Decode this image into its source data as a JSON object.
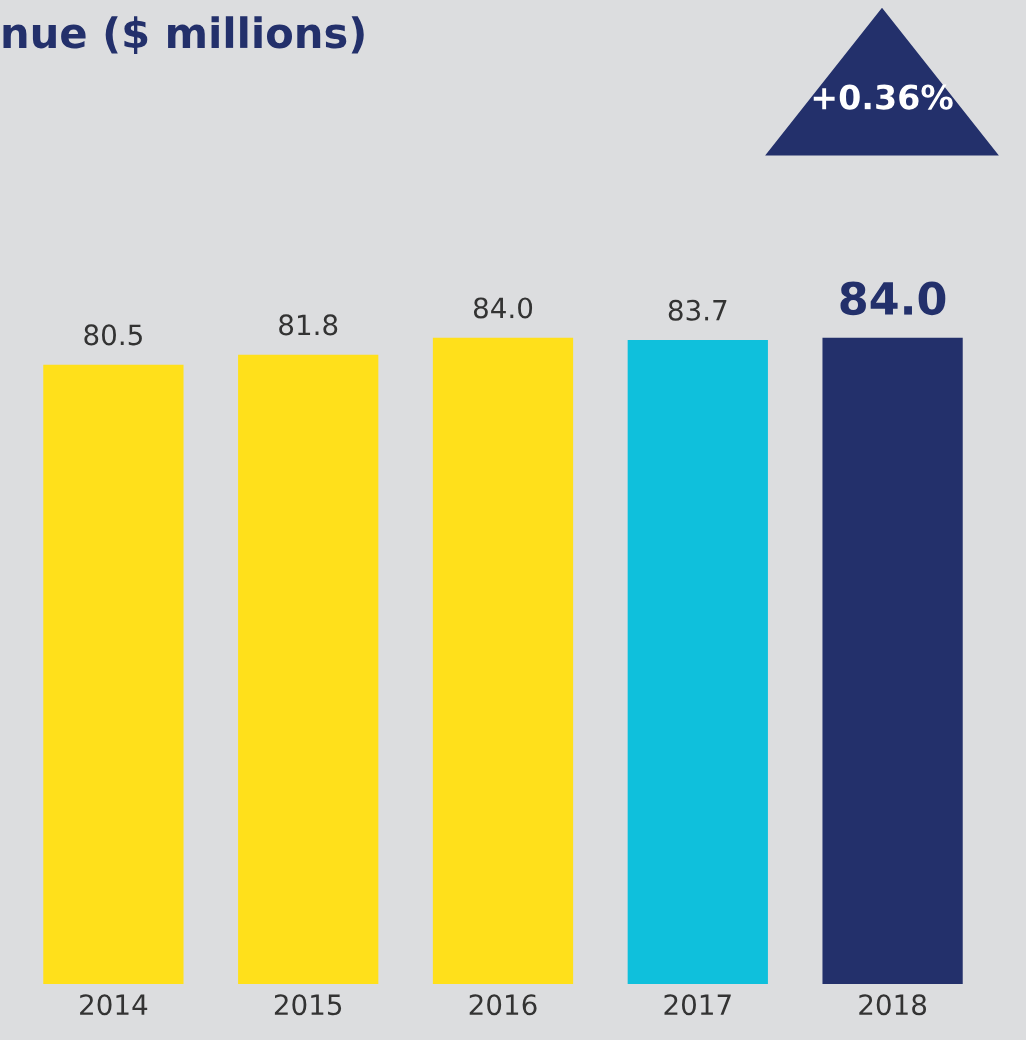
{
  "chart_data": {
    "type": "bar",
    "title": "nue ($ millions)",
    "categories": [
      "2014",
      "2015",
      "2016",
      "2017",
      "2018"
    ],
    "values": [
      80.5,
      81.8,
      84.0,
      83.7,
      84.0
    ],
    "colors": [
      "#ffe01b",
      "#ffe01b",
      "#ffe01b",
      "#0fc0dc",
      "#23306b"
    ],
    "value_labels": [
      "80.5",
      "81.8",
      "84.0",
      "83.7",
      "84.0"
    ],
    "annotations": [
      "+0.36%"
    ],
    "grid": false,
    "legend": false
  }
}
